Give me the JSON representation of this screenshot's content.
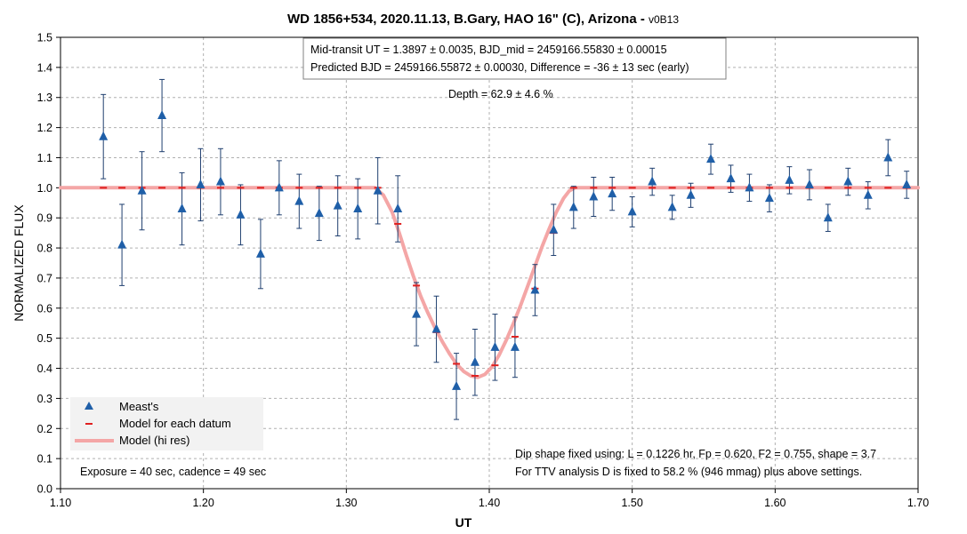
{
  "chart_data": {
    "type": "scatter",
    "title": "WD 1856+534, 2020.11.13, B.Gary, HAO 16\" (C), Arizona - ",
    "title_suffix": "v0B13",
    "xlabel": "UT",
    "ylabel": "NORMALIZED FLUX",
    "xlim": [
      1.1,
      1.7
    ],
    "ylim": [
      0.0,
      1.5
    ],
    "x_ticks": [
      1.1,
      1.2,
      1.3,
      1.4,
      1.5,
      1.6,
      1.7
    ],
    "x_tick_labels": [
      "1.10",
      "1.20",
      "1.30",
      "1.40",
      "1.50",
      "1.60",
      "1.70"
    ],
    "y_ticks": [
      0.0,
      0.1,
      0.2,
      0.3,
      0.4,
      0.5,
      0.6,
      0.7,
      0.8,
      0.9,
      1.0,
      1.1,
      1.2,
      1.3,
      1.4,
      1.5
    ],
    "y_tick_labels": [
      "0.0",
      "0.1",
      "0.2",
      "0.3",
      "0.4",
      "0.5",
      "0.6",
      "0.7",
      "0.8",
      "0.9",
      "1.0",
      "1.1",
      "1.2",
      "1.3",
      "1.4",
      "1.5"
    ],
    "grid": true,
    "legend_position": "bottom-left",
    "colors": {
      "measurement": "#1f5fa8",
      "error_bar": "#1f3f6f",
      "model_datum": "#e02020",
      "model_hires": "#f4a6a6",
      "grid": "#b0b0b0",
      "legend_bg": "#f2f2f2"
    },
    "series": [
      {
        "name": "Meast's",
        "marker": "triangle",
        "points": [
          {
            "x": 1.13,
            "y": 1.17,
            "err": 0.14
          },
          {
            "x": 1.143,
            "y": 0.81,
            "err": 0.135
          },
          {
            "x": 1.157,
            "y": 0.99,
            "err": 0.13
          },
          {
            "x": 1.171,
            "y": 1.24,
            "err": 0.12
          },
          {
            "x": 1.185,
            "y": 0.93,
            "err": 0.12
          },
          {
            "x": 1.198,
            "y": 1.01,
            "err": 0.12
          },
          {
            "x": 1.212,
            "y": 1.02,
            "err": 0.11
          },
          {
            "x": 1.226,
            "y": 0.91,
            "err": 0.1
          },
          {
            "x": 1.24,
            "y": 0.78,
            "err": 0.115
          },
          {
            "x": 1.253,
            "y": 1.0,
            "err": 0.09
          },
          {
            "x": 1.267,
            "y": 0.955,
            "err": 0.09
          },
          {
            "x": 1.281,
            "y": 0.915,
            "err": 0.09
          },
          {
            "x": 1.294,
            "y": 0.94,
            "err": 0.1
          },
          {
            "x": 1.308,
            "y": 0.93,
            "err": 0.1
          },
          {
            "x": 1.322,
            "y": 0.99,
            "err": 0.11
          },
          {
            "x": 1.336,
            "y": 0.93,
            "err": 0.11
          },
          {
            "x": 1.349,
            "y": 0.58,
            "err": 0.105
          },
          {
            "x": 1.363,
            "y": 0.53,
            "err": 0.11
          },
          {
            "x": 1.377,
            "y": 0.34,
            "err": 0.11
          },
          {
            "x": 1.39,
            "y": 0.42,
            "err": 0.11
          },
          {
            "x": 1.404,
            "y": 0.47,
            "err": 0.11
          },
          {
            "x": 1.418,
            "y": 0.47,
            "err": 0.1
          },
          {
            "x": 1.432,
            "y": 0.66,
            "err": 0.085
          },
          {
            "x": 1.445,
            "y": 0.86,
            "err": 0.085
          },
          {
            "x": 1.459,
            "y": 0.935,
            "err": 0.07
          },
          {
            "x": 1.473,
            "y": 0.97,
            "err": 0.065
          },
          {
            "x": 1.486,
            "y": 0.98,
            "err": 0.055
          },
          {
            "x": 1.5,
            "y": 0.92,
            "err": 0.05
          },
          {
            "x": 1.514,
            "y": 1.02,
            "err": 0.045
          },
          {
            "x": 1.528,
            "y": 0.935,
            "err": 0.04
          },
          {
            "x": 1.541,
            "y": 0.975,
            "err": 0.04
          },
          {
            "x": 1.555,
            "y": 1.095,
            "err": 0.05
          },
          {
            "x": 1.569,
            "y": 1.03,
            "err": 0.045
          },
          {
            "x": 1.582,
            "y": 1.0,
            "err": 0.045
          },
          {
            "x": 1.596,
            "y": 0.965,
            "err": 0.045
          },
          {
            "x": 1.61,
            "y": 1.025,
            "err": 0.045
          },
          {
            "x": 1.624,
            "y": 1.01,
            "err": 0.05
          },
          {
            "x": 1.637,
            "y": 0.9,
            "err": 0.045
          },
          {
            "x": 1.651,
            "y": 1.02,
            "err": 0.045
          },
          {
            "x": 1.665,
            "y": 0.975,
            "err": 0.045
          },
          {
            "x": 1.679,
            "y": 1.1,
            "err": 0.06
          },
          {
            "x": 1.692,
            "y": 1.01,
            "err": 0.045
          }
        ]
      },
      {
        "name": "Model for each datum",
        "marker": "dash",
        "x": [
          1.13,
          1.143,
          1.157,
          1.171,
          1.185,
          1.198,
          1.212,
          1.226,
          1.24,
          1.253,
          1.267,
          1.281,
          1.294,
          1.308,
          1.322,
          1.336,
          1.349,
          1.363,
          1.377,
          1.39,
          1.404,
          1.418,
          1.432,
          1.445,
          1.459,
          1.473,
          1.486,
          1.5,
          1.514,
          1.528,
          1.541,
          1.555,
          1.569,
          1.582,
          1.596,
          1.61,
          1.624,
          1.637,
          1.651,
          1.665,
          1.679,
          1.692
        ],
        "values": [
          1.0,
          1.0,
          1.0,
          1.0,
          1.0,
          1.0,
          1.0,
          1.0,
          1.0,
          1.0,
          1.0,
          1.0,
          1.0,
          1.0,
          1.0,
          0.88,
          0.675,
          0.52,
          0.415,
          0.375,
          0.41,
          0.505,
          0.665,
          0.85,
          1.0,
          1.0,
          1.0,
          1.0,
          1.0,
          1.0,
          1.0,
          1.0,
          1.0,
          1.0,
          1.0,
          1.0,
          1.0,
          1.0,
          1.0,
          1.0,
          1.0,
          1.0
        ]
      },
      {
        "name": "Model (hi res)",
        "marker": "line",
        "x": [
          1.1,
          1.32,
          1.326,
          1.332,
          1.337,
          1.342,
          1.347,
          1.352,
          1.357,
          1.362,
          1.367,
          1.372,
          1.377,
          1.382,
          1.387,
          1.392,
          1.397,
          1.402,
          1.407,
          1.412,
          1.417,
          1.422,
          1.427,
          1.432,
          1.437,
          1.442,
          1.447,
          1.452,
          1.456,
          1.46,
          1.7
        ],
        "values": [
          1.0,
          1.0,
          0.975,
          0.92,
          0.85,
          0.775,
          0.705,
          0.64,
          0.585,
          0.535,
          0.49,
          0.45,
          0.415,
          0.39,
          0.375,
          0.37,
          0.38,
          0.405,
          0.445,
          0.495,
          0.55,
          0.61,
          0.675,
          0.74,
          0.805,
          0.865,
          0.92,
          0.965,
          0.99,
          1.0,
          1.0
        ]
      }
    ],
    "annotations": {
      "box_line1": "Mid-transit UT = 1.3897 ± 0.0035, BJD_mid = 2459166.55830 ± 0.00015",
      "box_line2": "Predicted BJD = 2459166.55872 ± 0.00030, Difference = -36 ± 13 sec (early)",
      "depth": "Depth = 62.9 ± 4.6 %",
      "exposure": "Exposure = 40 sec, cadence = 49 sec",
      "dip_line1": "Dip shape fixed using:  L = 0.1226 hr, Fp = 0.620, F2 = 0.755, shape = 3.7",
      "dip_line2": "For TTV analysis D is fixed  to 58.2 % (946 mmag) plus above settings."
    }
  }
}
